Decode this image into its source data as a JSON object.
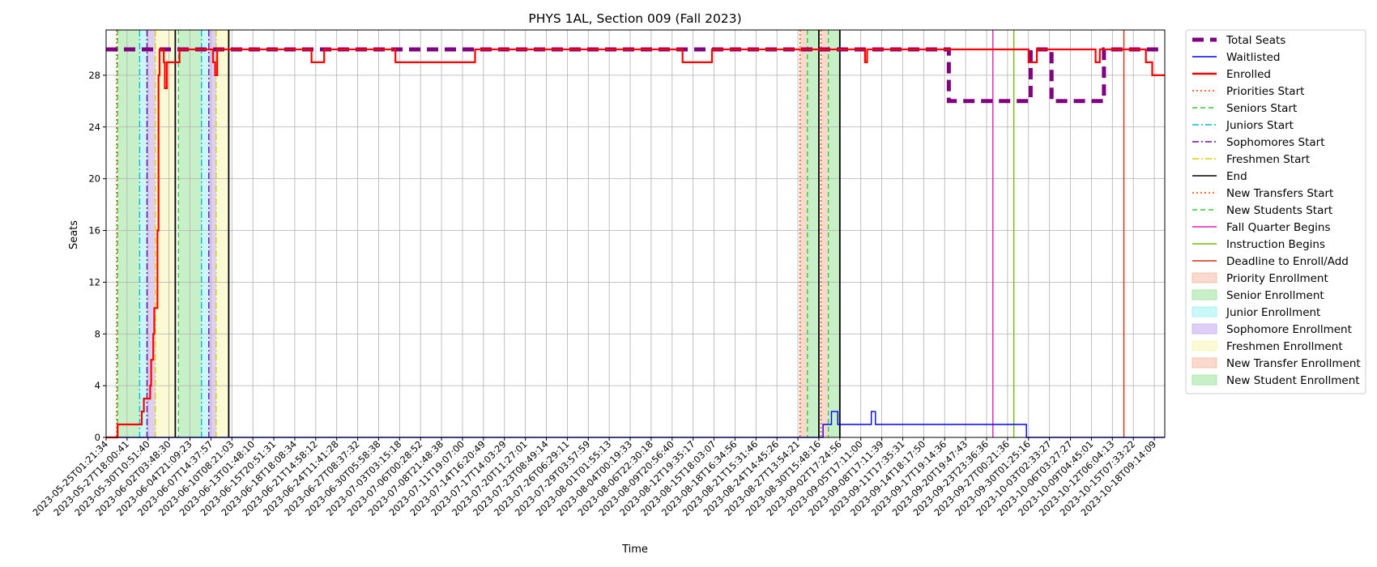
{
  "chart_data": {
    "type": "line",
    "title": "PHYS 1AL, Section 009 (Fall 2023)",
    "xlabel": "Time",
    "ylabel": "Seats",
    "ylim": [
      0,
      31.5
    ],
    "yticks": [
      0,
      4,
      8,
      12,
      16,
      20,
      24,
      28
    ],
    "xlim": [
      0,
      50.5
    ],
    "grid": true,
    "legend_position": "outside-right",
    "x_tick_labels": [
      "2023-05-25T01:21:34",
      "2023-05-27T18:00:41",
      "2023-05-30T10:51:40",
      "2023-06-02T03:48:30",
      "2023-06-04T21:09:23",
      "2023-06-07T14:37:57",
      "2023-06-10T08:21:03",
      "2023-06-13T01:48:10",
      "2023-06-15T20:51:31",
      "2023-06-18T18:08:34",
      "2023-06-21T14:58:12",
      "2023-06-24T11:41:28",
      "2023-06-27T08:37:32",
      "2023-06-30T05:58:38",
      "2023-07-03T03:15:18",
      "2023-07-06T00:28:52",
      "2023-07-08T21:48:38",
      "2023-07-11T19:07:00",
      "2023-07-14T16:20:49",
      "2023-07-17T14:03:29",
      "2023-07-20T11:27:01",
      "2023-07-23T08:49:14",
      "2023-07-26T06:29:11",
      "2023-07-29T03:57:59",
      "2023-08-01T01:55:13",
      "2023-08-04T00:19:33",
      "2023-08-06T22:30:18",
      "2023-08-09T20:56:40",
      "2023-08-12T19:35:17",
      "2023-08-15T18:03:07",
      "2023-08-18T16:34:56",
      "2023-08-21T15:31:46",
      "2023-08-24T14:45:26",
      "2023-08-27T13:54:21",
      "2023-08-30T15:48:16",
      "2023-09-02T17:24:56",
      "2023-09-05T17:11:00",
      "2023-09-08T17:11:39",
      "2023-09-11T17:35:31",
      "2023-09-14T18:17:50",
      "2023-09-17T19:14:36",
      "2023-09-20T19:47:43",
      "2023-09-23T23:36:36",
      "2023-09-27T00:21:36",
      "2023-09-30T01:25:16",
      "2023-10-03T02:33:27",
      "2023-10-06T03:27:27",
      "2023-10-09T04:45:01",
      "2023-10-12T06:04:13",
      "2023-10-15T07:33:22",
      "2023-10-18T09:14:09"
    ],
    "series": [
      {
        "name": "Total Seats",
        "color": "#800080",
        "points": [
          [
            0,
            30
          ],
          [
            40.2,
            30
          ],
          [
            40.2,
            26
          ],
          [
            44.1,
            26
          ],
          [
            44.1,
            30
          ],
          [
            45.1,
            30
          ],
          [
            45.1,
            26
          ],
          [
            47.6,
            26
          ],
          [
            47.6,
            30
          ],
          [
            50.5,
            30
          ]
        ]
      },
      {
        "name": "Waitlisted",
        "color": "#0000ff",
        "points": [
          [
            0,
            0
          ],
          [
            34.2,
            0
          ],
          [
            34.2,
            1
          ],
          [
            34.6,
            1
          ],
          [
            34.6,
            2
          ],
          [
            34.9,
            2
          ],
          [
            34.9,
            1
          ],
          [
            36.5,
            1
          ],
          [
            36.5,
            2
          ],
          [
            36.7,
            2
          ],
          [
            36.7,
            1
          ],
          [
            43.9,
            1
          ],
          [
            43.9,
            0
          ],
          [
            50.5,
            0
          ]
        ]
      },
      {
        "name": "Enrolled",
        "color": "#ff0000",
        "points": [
          [
            0,
            0
          ],
          [
            0.55,
            0
          ],
          [
            0.55,
            1
          ],
          [
            1.7,
            1
          ],
          [
            1.7,
            2
          ],
          [
            1.8,
            2
          ],
          [
            1.8,
            3
          ],
          [
            2.1,
            3
          ],
          [
            2.1,
            4
          ],
          [
            2.15,
            4
          ],
          [
            2.15,
            6
          ],
          [
            2.25,
            6
          ],
          [
            2.25,
            8
          ],
          [
            2.3,
            8
          ],
          [
            2.3,
            10
          ],
          [
            2.45,
            10
          ],
          [
            2.45,
            16
          ],
          [
            2.5,
            16
          ],
          [
            2.5,
            28
          ],
          [
            2.55,
            28
          ],
          [
            2.55,
            30
          ],
          [
            2.75,
            30
          ],
          [
            2.75,
            29
          ],
          [
            2.8,
            29
          ],
          [
            2.8,
            27
          ],
          [
            2.9,
            27
          ],
          [
            2.9,
            29
          ],
          [
            3.5,
            29
          ],
          [
            3.5,
            30
          ],
          [
            5.1,
            30
          ],
          [
            5.1,
            29
          ],
          [
            5.2,
            29
          ],
          [
            5.2,
            28
          ],
          [
            5.3,
            28
          ],
          [
            5.3,
            30
          ],
          [
            9.8,
            30
          ],
          [
            9.8,
            29
          ],
          [
            10.4,
            29
          ],
          [
            10.4,
            30
          ],
          [
            13.8,
            30
          ],
          [
            13.8,
            29
          ],
          [
            17.6,
            29
          ],
          [
            17.6,
            30
          ],
          [
            27.5,
            30
          ],
          [
            27.5,
            29
          ],
          [
            28.9,
            29
          ],
          [
            28.9,
            30
          ],
          [
            36.2,
            30
          ],
          [
            36.2,
            29
          ],
          [
            36.3,
            29
          ],
          [
            36.3,
            30
          ],
          [
            44.0,
            30
          ],
          [
            44.0,
            29
          ],
          [
            44.4,
            29
          ],
          [
            44.4,
            30
          ],
          [
            47.2,
            30
          ],
          [
            47.2,
            29
          ],
          [
            47.4,
            29
          ],
          [
            47.4,
            30
          ],
          [
            49.6,
            30
          ],
          [
            49.6,
            29
          ],
          [
            49.9,
            29
          ],
          [
            49.9,
            28
          ],
          [
            50.5,
            28
          ]
        ]
      }
    ],
    "vertical_lines": [
      {
        "name": "Priorities Start",
        "x": 0.5,
        "color": "#ff4500",
        "dash": "dotted"
      },
      {
        "name": "Seniors Start",
        "x": 0.55,
        "color": "#32cd32",
        "dash": "dashed"
      },
      {
        "name": "Juniors Start",
        "x": 1.6,
        "color": "#00bcd4",
        "dash": "dashdot"
      },
      {
        "name": "Sophomores Start",
        "x": 1.95,
        "color": "#6a0dad",
        "dash": "dashdot"
      },
      {
        "name": "Freshmen Start",
        "x": 2.35,
        "color": "#d4d400",
        "dash": "dashdot"
      },
      {
        "name": "End",
        "x": 3.3,
        "color": "#000000",
        "dash": "solid"
      },
      {
        "name": "Seniors Start",
        "x": 3.45,
        "color": "#32cd32",
        "dash": "dashed"
      },
      {
        "name": "Juniors Start",
        "x": 4.55,
        "color": "#00bcd4",
        "dash": "dashdot"
      },
      {
        "name": "Sophomores Start",
        "x": 4.9,
        "color": "#6a0dad",
        "dash": "dashdot"
      },
      {
        "name": "Freshmen Start",
        "x": 5.25,
        "color": "#d4d400",
        "dash": "dashdot"
      },
      {
        "name": "End",
        "x": 5.85,
        "color": "#000000",
        "dash": "solid"
      },
      {
        "name": "New Transfers Start",
        "x": 33.1,
        "color": "#ff4500",
        "dash": "dotted"
      },
      {
        "name": "New Students Start",
        "x": 33.45,
        "color": "#32cd32",
        "dash": "dashed"
      },
      {
        "name": "End",
        "x": 34.0,
        "color": "#000000",
        "dash": "solid"
      },
      {
        "name": "New Transfers Start",
        "x": 34.1,
        "color": "#ff4500",
        "dash": "dotted"
      },
      {
        "name": "New Students Start",
        "x": 34.45,
        "color": "#32cd32",
        "dash": "dashed"
      },
      {
        "name": "End",
        "x": 35.0,
        "color": "#000000",
        "dash": "solid"
      },
      {
        "name": "Fall Quarter Begins",
        "x": 42.3,
        "color": "#e020b0",
        "dash": "solid"
      },
      {
        "name": "Instruction Begins",
        "x": 43.3,
        "color": "#7cb800",
        "dash": "solid"
      },
      {
        "name": "Deadline to Enroll/Add",
        "x": 48.55,
        "color": "#d03010",
        "dash": "solid"
      }
    ],
    "shaded_regions": [
      {
        "name": "Senior Enrollment",
        "x0": 0.55,
        "x1": 1.6,
        "color": "#9be39b"
      },
      {
        "name": "Junior Enrollment",
        "x0": 1.6,
        "x1": 1.95,
        "color": "#9ef0f0"
      },
      {
        "name": "Sophomore Enrollment",
        "x0": 1.95,
        "x1": 2.35,
        "color": "#c4a8f0"
      },
      {
        "name": "Freshmen Enrollment",
        "x0": 2.35,
        "x1": 3.3,
        "color": "#f6f6b0"
      },
      {
        "name": "Senior Enrollment",
        "x0": 3.45,
        "x1": 4.55,
        "color": "#9be39b"
      },
      {
        "name": "Junior Enrollment",
        "x0": 4.55,
        "x1": 4.9,
        "color": "#9ef0f0"
      },
      {
        "name": "Sophomore Enrollment",
        "x0": 4.9,
        "x1": 5.25,
        "color": "#c4a8f0"
      },
      {
        "name": "Freshmen Enrollment",
        "x0": 5.25,
        "x1": 5.85,
        "color": "#f6f6b0"
      },
      {
        "name": "New Transfer Enrollment",
        "x0": 33.1,
        "x1": 33.45,
        "color": "#f3b9a0"
      },
      {
        "name": "New Student Enrollment",
        "x0": 33.45,
        "x1": 34.0,
        "color": "#9be39b"
      },
      {
        "name": "New Transfer Enrollment",
        "x0": 34.1,
        "x1": 34.45,
        "color": "#f3b9a0"
      },
      {
        "name": "New Student Enrollment",
        "x0": 34.45,
        "x1": 35.0,
        "color": "#9be39b"
      }
    ],
    "legend": [
      {
        "label": "Total Seats",
        "kind": "line",
        "color": "#800080",
        "dash": "thick-dashed"
      },
      {
        "label": "Waitlisted",
        "kind": "line",
        "color": "#0000ff",
        "dash": "solid"
      },
      {
        "label": "Enrolled",
        "kind": "line",
        "color": "#ff0000",
        "dash": "solid-thick"
      },
      {
        "label": "Priorities Start",
        "kind": "line",
        "color": "#ff4500",
        "dash": "dotted"
      },
      {
        "label": "Seniors Start",
        "kind": "line",
        "color": "#32cd32",
        "dash": "dashed"
      },
      {
        "label": "Juniors Start",
        "kind": "line",
        "color": "#00bcd4",
        "dash": "dashdot"
      },
      {
        "label": "Sophomores Start",
        "kind": "line",
        "color": "#6a0dad",
        "dash": "dashdot"
      },
      {
        "label": "Freshmen Start",
        "kind": "line",
        "color": "#d4d400",
        "dash": "dashdot"
      },
      {
        "label": "End",
        "kind": "line",
        "color": "#000000",
        "dash": "solid"
      },
      {
        "label": "New Transfers Start",
        "kind": "line",
        "color": "#ff4500",
        "dash": "dotted"
      },
      {
        "label": "New Students Start",
        "kind": "line",
        "color": "#32cd32",
        "dash": "dashed"
      },
      {
        "label": "Fall Quarter Begins",
        "kind": "line",
        "color": "#e020b0",
        "dash": "solid"
      },
      {
        "label": "Instruction Begins",
        "kind": "line",
        "color": "#7cb800",
        "dash": "solid"
      },
      {
        "label": "Deadline to Enroll/Add",
        "kind": "line",
        "color": "#d03010",
        "dash": "solid"
      },
      {
        "label": "Priority Enrollment",
        "kind": "patch",
        "color": "#f3b9a0"
      },
      {
        "label": "Senior Enrollment",
        "kind": "patch",
        "color": "#9be39b"
      },
      {
        "label": "Junior Enrollment",
        "kind": "patch",
        "color": "#9ef0f0"
      },
      {
        "label": "Sophomore Enrollment",
        "kind": "patch",
        "color": "#c4a8f0"
      },
      {
        "label": "Freshmen Enrollment",
        "kind": "patch",
        "color": "#f6f6b0"
      },
      {
        "label": "New Transfer Enrollment",
        "kind": "patch",
        "color": "#f3b9a0"
      },
      {
        "label": "New Student Enrollment",
        "kind": "patch",
        "color": "#9be39b"
      }
    ]
  }
}
